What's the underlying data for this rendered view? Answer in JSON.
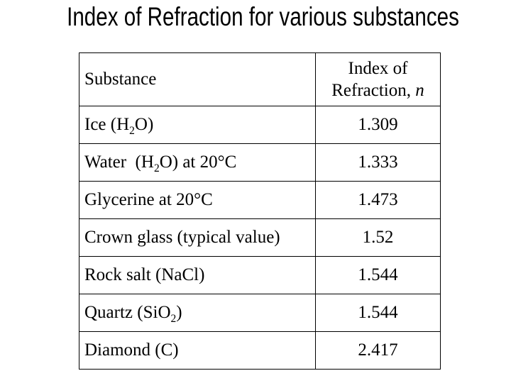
{
  "colors": {
    "background": "#ffffff",
    "text": "#000000",
    "table_border": "#000000"
  },
  "title": {
    "text": "Index of Refraction for various substances"
  },
  "table": {
    "header": {
      "substance_label": "Substance",
      "index_label_segments": [
        {
          "t": "Index of Refraction, "
        },
        {
          "t": "n",
          "italic": true
        }
      ]
    },
    "rows": [
      {
        "substance": [
          {
            "t": "Ice (H"
          },
          {
            "t": "2",
            "sub": true
          },
          {
            "t": "O)"
          }
        ],
        "value": "1.309"
      },
      {
        "substance": [
          {
            "t": "Water  (H"
          },
          {
            "t": "2",
            "sub": true
          },
          {
            "t": "O) at 20°C"
          }
        ],
        "value": "1.333"
      },
      {
        "substance": [
          {
            "t": "Glycerine at 20°C"
          }
        ],
        "value": "1.473"
      },
      {
        "substance": [
          {
            "t": "Crown glass (typical value)"
          }
        ],
        "value": "1.52"
      },
      {
        "substance": [
          {
            "t": "Rock salt (NaCl)"
          }
        ],
        "value": "1.544"
      },
      {
        "substance": [
          {
            "t": "Quartz (SiO"
          },
          {
            "t": "2",
            "sub": true
          },
          {
            "t": ")"
          }
        ],
        "value": "1.544"
      },
      {
        "substance": [
          {
            "t": "Diamond (C)"
          }
        ],
        "value": "2.417"
      }
    ]
  }
}
